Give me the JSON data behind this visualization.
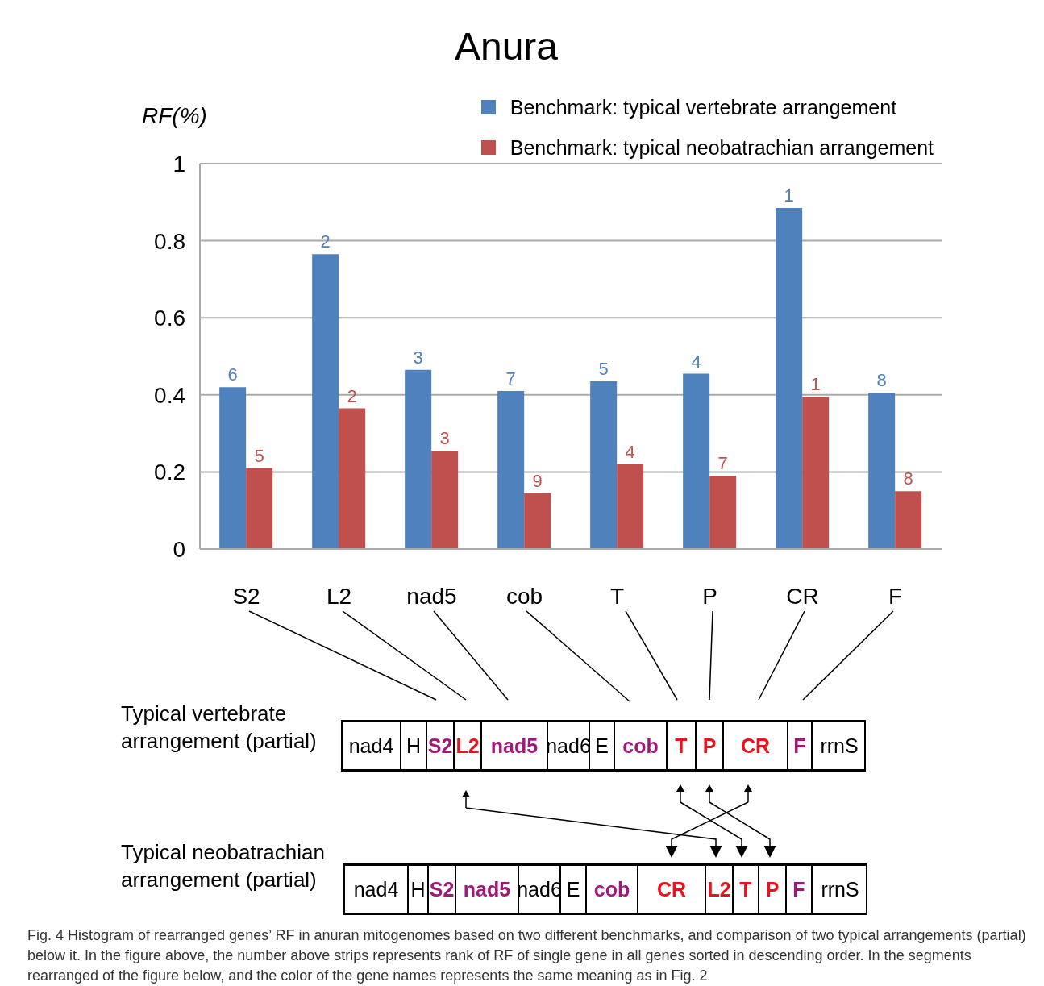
{
  "chart_data": [
    {
      "type": "bar",
      "title": "Anura",
      "ylabel": "RF(%)",
      "categories": [
        "S2",
        "L2",
        "nad5",
        "cob",
        "T",
        "P",
        "CR",
        "F"
      ],
      "series": [
        {
          "name": "Benchmark: typical vertebrate arrangement",
          "color": "#4f81bd",
          "values": [
            0.42,
            0.765,
            0.465,
            0.41,
            0.435,
            0.455,
            0.885,
            0.405
          ]
        },
        {
          "name": "Benchmark: typical neobatrachian arrangement",
          "color": "#c0504d",
          "values": [
            0.21,
            0.365,
            0.255,
            0.145,
            0.22,
            0.19,
            0.395,
            0.15
          ]
        }
      ],
      "ylim": [
        0,
        1
      ],
      "yticks": [
        0,
        0.2,
        0.4,
        0.6,
        0.8,
        1
      ],
      "grid": "y",
      "legend": "top right",
      "annotations": [
        {
          "text": "6",
          "x": "S2",
          "y": 0.42
        },
        {
          "text": "2",
          "x": "L2",
          "y": 0.765
        },
        {
          "text": "3",
          "x": "nad5",
          "y": 0.465
        },
        {
          "text": "7",
          "x": "cob",
          "y": 0.41
        },
        {
          "text": "5",
          "x": "T",
          "y": 0.435
        },
        {
          "text": "4",
          "x": "P",
          "y": 0.455
        },
        {
          "text": "1",
          "x": "CR",
          "y": 0.885
        },
        {
          "text": "8",
          "x": "F",
          "y": 0.405
        },
        {
          "text": "5",
          "x": "S2",
          "y": 0.21
        },
        {
          "text": "2",
          "x": "L2",
          "y": 0.365
        },
        {
          "text": "3",
          "x": "nad5",
          "y": 0.255
        },
        {
          "text": "9",
          "x": "cob",
          "y": 0.145
        },
        {
          "text": "4",
          "x": "T",
          "y": 0.22
        },
        {
          "text": "7",
          "x": "P",
          "y": 0.19
        },
        {
          "text": "1",
          "x": "CR",
          "y": 0.395
        },
        {
          "text": "8",
          "x": "F",
          "y": 0.15
        },
        "Fig. 4  Histogram of rearranged genes’ RF in anuran mitogenomes based on two different benchmarks, and comparison of two typical arrangements (partial) below it. In the figure above, the number above strips represents rank of RF of single gene in all genes sorted in descending order. In the segments rearranged of the figure below, and the color of the gene names represents the same meaning as in Fig. 2"
      ]
    },
    {
      "type": "other",
      "title": "Typical vertebrate arrangement (partial)",
      "categories": [
        "nad4",
        "H",
        "S2",
        "L2",
        "nad5",
        "nad6",
        "E",
        "cob",
        "T",
        "P",
        "CR",
        "F",
        "rrnS"
      ],
      "colors": [
        "#000000",
        "#000000",
        "#a0197a",
        "#e8141c",
        "#a0197a",
        "#000000",
        "#000000",
        "#a0197a",
        "#e8141c",
        "#e8141c",
        "#e8141c",
        "#a0197a",
        "#000000"
      ]
    },
    {
      "type": "other",
      "title": "Typical neobatrachian arrangement (partial)",
      "categories": [
        "nad4",
        "H",
        "S2",
        "nad5",
        "nad6",
        "E",
        "cob",
        "CR",
        "L2",
        "T",
        "P",
        "F",
        "rrnS"
      ],
      "colors": [
        "#000000",
        "#000000",
        "#a0197a",
        "#a0197a",
        "#000000",
        "#000000",
        "#a0197a",
        "#e8141c",
        "#e8141c",
        "#e8141c",
        "#e8141c",
        "#a0197a",
        "#000000"
      ]
    }
  ]
}
